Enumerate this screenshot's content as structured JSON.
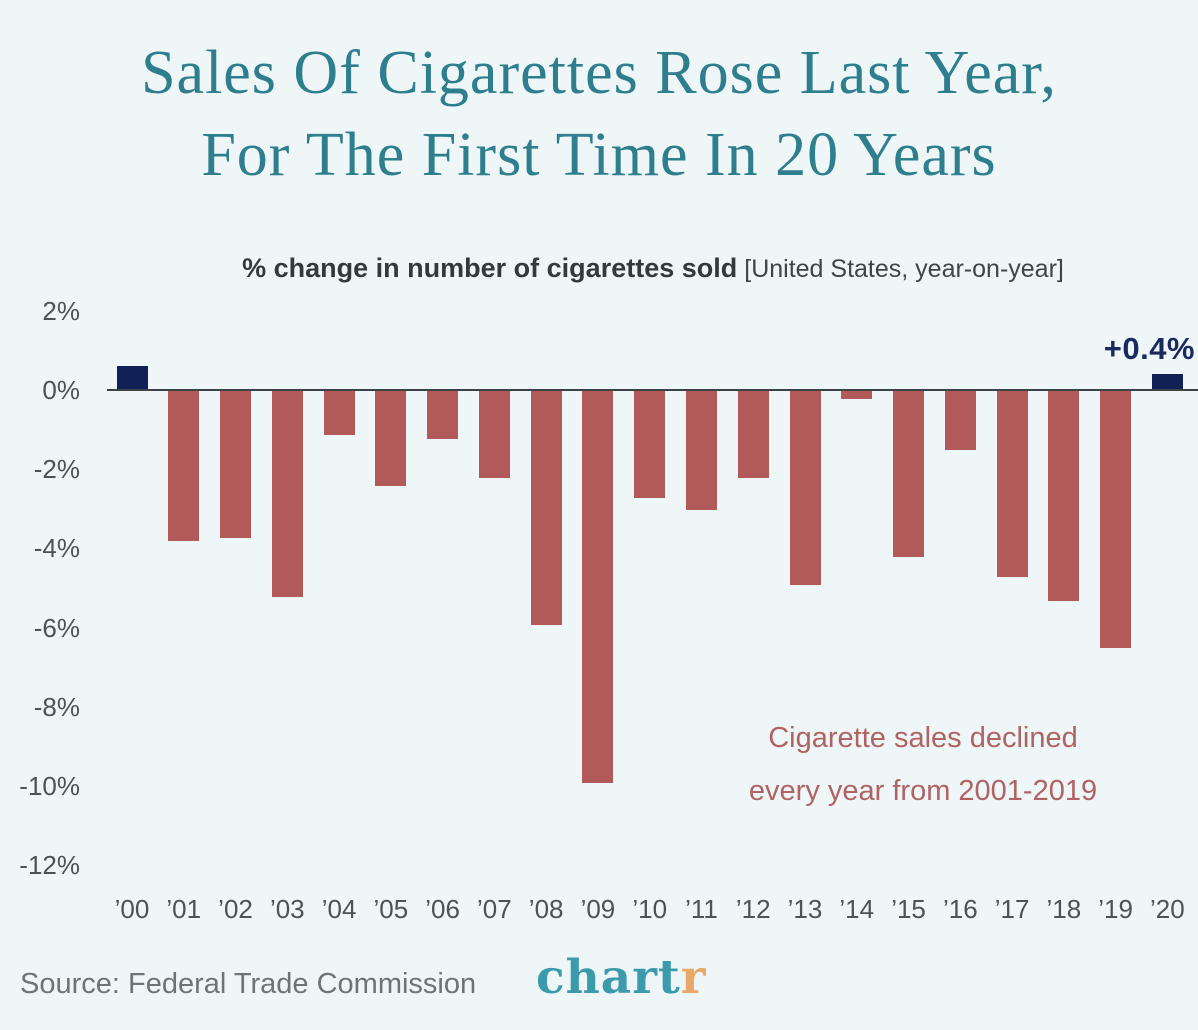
{
  "title": {
    "line1": "Sales Of Cigarettes Rose Last Year,",
    "line2": "For The First Time In 20 Years"
  },
  "subtitle": {
    "main": "% change in number of cigarettes sold",
    "qualifier": "[United States, year-on-year]"
  },
  "chart_data": {
    "type": "bar",
    "title": "% change in number of cigarettes sold [United States, year-on-year]",
    "categories": [
      "’00",
      "’01",
      "’02",
      "’03",
      "’04",
      "’05",
      "’06",
      "’07",
      "’08",
      "’09",
      "’10",
      "’11",
      "’12",
      "’13",
      "’14",
      "’15",
      "’16",
      "’17",
      "’18",
      "’19",
      "’20"
    ],
    "values": [
      0.6,
      -3.8,
      -3.7,
      -5.2,
      -1.1,
      -2.4,
      -1.2,
      -2.2,
      -5.9,
      -9.9,
      -2.7,
      -3.0,
      -2.2,
      -4.9,
      -0.2,
      -4.2,
      -1.5,
      -4.7,
      -5.3,
      -6.5,
      0.4
    ],
    "unit": "%",
    "y_ticks": [
      {
        "value": 2,
        "label": "2%"
      },
      {
        "value": 0,
        "label": "0%"
      },
      {
        "value": -2,
        "label": "-2%"
      },
      {
        "value": -4,
        "label": "-4%"
      },
      {
        "value": -6,
        "label": "-6%"
      },
      {
        "value": -8,
        "label": "-8%"
      },
      {
        "value": -10,
        "label": "-10%"
      },
      {
        "value": -12,
        "label": "-12%"
      }
    ],
    "ylim": [
      -12.8,
      2.6
    ],
    "grid": false,
    "legend": null,
    "highlight_label": "+0.4%",
    "positive_color": "#112156",
    "negative_color": "#b25a5a"
  },
  "annotation": {
    "line1": "Cigarette sales declined",
    "line2": "every year from 2001-2019",
    "color": "#b16363"
  },
  "footer": {
    "source": "Source: Federal Trade Commission",
    "logo_main": "chart",
    "logo_accent": "r"
  },
  "colors": {
    "background": "#eef6f7",
    "title_text": "#2e7e8e",
    "axis_text": "#4d5355",
    "highlight_text": "#1a2a5e",
    "logo_teal": "#3b9aac",
    "logo_orange": "#e9a768",
    "source_text": "#6e7475"
  }
}
